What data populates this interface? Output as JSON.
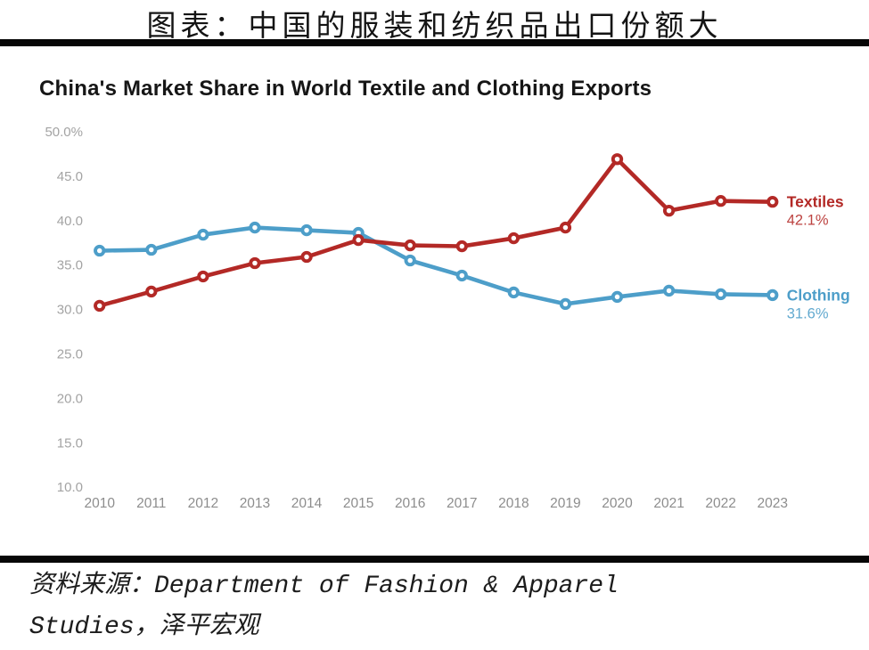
{
  "page": {
    "top_title": "图表：中国的服装和纺织品出口份额大",
    "source": {
      "line1": "资料来源：Department of Fashion & Apparel",
      "line2": "Studies，泽平宏观"
    }
  },
  "chart_data": {
    "type": "line",
    "title": "China's Market Share in World Textile and Clothing Exports",
    "x": [
      2010,
      2011,
      2012,
      2013,
      2014,
      2015,
      2016,
      2017,
      2018,
      2019,
      2020,
      2021,
      2022,
      2023
    ],
    "series": [
      {
        "name": "Clothing",
        "color": "#4d9ec9",
        "values": [
          36.6,
          36.7,
          38.4,
          39.2,
          38.9,
          38.6,
          35.5,
          33.8,
          31.9,
          30.6,
          31.4,
          32.1,
          31.7,
          31.6
        ],
        "end_label": "31.6%"
      },
      {
        "name": "Textiles",
        "color": "#b32926",
        "values": [
          30.4,
          32.0,
          33.7,
          35.2,
          35.9,
          37.8,
          37.2,
          37.1,
          38.0,
          39.2,
          46.9,
          41.1,
          42.2,
          42.1
        ],
        "end_label": "42.1%"
      }
    ],
    "ylim": [
      10,
      50
    ],
    "yticks": [
      50,
      45,
      40,
      35,
      30,
      25,
      20,
      15,
      10
    ],
    "ytick_labels": [
      "50.0%",
      "45.0",
      "40.0",
      "35.0",
      "30.0",
      "25.0",
      "20.0",
      "15.0",
      "10.0"
    ],
    "grid": false,
    "legend_position": "right-of-last-point",
    "marker": "open-circle"
  }
}
